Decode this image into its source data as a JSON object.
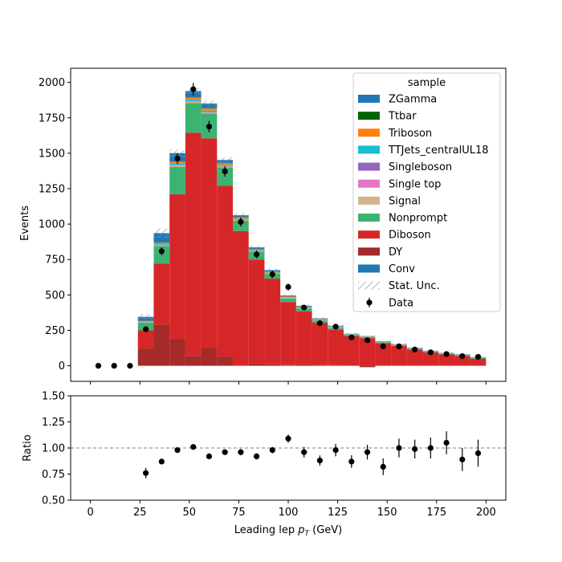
{
  "chart_data": [
    {
      "type": "bar",
      "panel": "main",
      "subtype": "stacked-histogram",
      "ylabel": "Events",
      "xlim": [
        -10,
        210
      ],
      "ylim": [
        -110,
        2100
      ],
      "x_ticks": [
        0,
        25,
        50,
        75,
        100,
        125,
        150,
        175,
        200
      ],
      "y_ticks": [
        0,
        250,
        500,
        750,
        1000,
        1250,
        1500,
        1750,
        2000
      ],
      "y_tick_labels": [
        "0",
        "250",
        "500",
        "750",
        "1000",
        "1250",
        "1500",
        "1750",
        "2000"
      ],
      "bin_edges": [
        0,
        8,
        16,
        24,
        32,
        40,
        48,
        56,
        64,
        72,
        80,
        88,
        96,
        104,
        112,
        120,
        128,
        136,
        144,
        152,
        160,
        168,
        176,
        184,
        192,
        200
      ],
      "legend": {
        "title": "sample",
        "placement": "top-right",
        "entries": [
          "ZGamma",
          "Ttbar",
          "Triboson",
          "TTJets_centralUL18",
          "Singleboson",
          "Single top",
          "Signal",
          "Nonprompt",
          "Diboson",
          "DY",
          "Conv",
          "Stat. Unc.",
          "Data"
        ]
      },
      "series": [
        {
          "name": "DY",
          "color": "#a52a2a",
          "values": [
            0,
            0,
            0,
            120,
            290,
            190,
            70,
            125,
            65,
            0,
            15,
            10,
            5,
            10,
            5,
            5,
            0,
            -10,
            0,
            0,
            0,
            0,
            0,
            0,
            0
          ]
        },
        {
          "name": "Diboson",
          "color": "#d62728",
          "values": [
            0,
            0,
            0,
            130,
            430,
            1020,
            1575,
            1480,
            1205,
            950,
            735,
            605,
            445,
            375,
            300,
            250,
            210,
            195,
            160,
            140,
            115,
            95,
            80,
            70,
            50
          ]
        },
        {
          "name": "Nonprompt",
          "color": "#3cb371",
          "values": [
            0,
            0,
            0,
            55,
            125,
            195,
            210,
            175,
            130,
            75,
            55,
            35,
            25,
            20,
            15,
            12,
            8,
            8,
            6,
            6,
            5,
            5,
            5,
            5,
            5
          ]
        },
        {
          "name": "Signal",
          "color": "#d2b48c",
          "values": [
            0,
            0,
            0,
            3,
            5,
            8,
            8,
            7,
            6,
            5,
            4,
            3,
            3,
            2,
            2,
            2,
            1,
            1,
            1,
            1,
            1,
            1,
            1,
            1,
            1
          ]
        },
        {
          "name": "Single top",
          "color": "#e377c2",
          "values": [
            0,
            0,
            0,
            1,
            2,
            2,
            2,
            2,
            2,
            1,
            1,
            1,
            1,
            1,
            1,
            1,
            0,
            0,
            0,
            0,
            0,
            0,
            0,
            0,
            0
          ]
        },
        {
          "name": "Singleboson",
          "color": "#9467bd",
          "values": [
            0,
            0,
            0,
            1,
            2,
            2,
            2,
            2,
            2,
            1,
            1,
            1,
            1,
            1,
            1,
            1,
            0,
            0,
            0,
            0,
            0,
            0,
            0,
            0,
            0
          ]
        },
        {
          "name": "TTJets_centralUL18",
          "color": "#17becf",
          "values": [
            0,
            0,
            0,
            2,
            5,
            8,
            10,
            10,
            8,
            6,
            5,
            4,
            3,
            3,
            2,
            2,
            2,
            1,
            1,
            1,
            1,
            1,
            1,
            1,
            1
          ]
        },
        {
          "name": "Triboson",
          "color": "#ff7f0e",
          "values": [
            0,
            0,
            0,
            5,
            10,
            14,
            15,
            15,
            12,
            10,
            8,
            6,
            5,
            4,
            3,
            3,
            2,
            2,
            2,
            2,
            1,
            1,
            1,
            1,
            1
          ]
        },
        {
          "name": "Ttbar",
          "color": "#006400",
          "values": [
            0,
            0,
            0,
            1,
            2,
            2,
            2,
            2,
            2,
            1,
            1,
            1,
            1,
            1,
            1,
            1,
            0,
            0,
            0,
            0,
            0,
            0,
            0,
            0,
            0
          ]
        },
        {
          "name": "ZGamma",
          "color": "#1f77b4",
          "values": [
            0,
            0,
            0,
            15,
            35,
            40,
            35,
            25,
            15,
            10,
            8,
            6,
            5,
            4,
            3,
            3,
            2,
            2,
            2,
            2,
            2,
            2,
            2,
            2,
            2
          ]
        },
        {
          "name": "Conv",
          "color": "#1f77b4",
          "values": [
            0,
            0,
            0,
            12,
            30,
            20,
            10,
            8,
            6,
            4,
            3,
            3,
            2,
            2,
            2,
            2,
            1,
            1,
            1,
            1,
            1,
            1,
            1,
            1,
            1
          ]
        }
      ],
      "stat_unc": [
        0,
        0,
        0,
        20,
        32,
        25,
        22,
        20,
        18,
        16,
        15,
        12,
        10,
        9,
        8,
        7,
        6,
        6,
        5,
        5,
        5,
        5,
        4,
        4,
        4
      ],
      "data": {
        "name": "Data",
        "color": "#000000",
        "x": [
          4,
          12,
          20,
          28,
          36,
          44,
          52,
          60,
          68,
          76,
          84,
          92,
          100,
          108,
          116,
          124,
          132,
          140,
          148,
          156,
          164,
          172,
          180,
          188,
          196
        ],
        "y": [
          0,
          0,
          0,
          258,
          808,
          1463,
          1952,
          1688,
          1372,
          1015,
          786,
          645,
          556,
          411,
          301,
          276,
          200,
          180,
          137,
          137,
          115,
          95,
          83,
          68,
          63
        ],
        "yerr": [
          0,
          0,
          0,
          16,
          28,
          38,
          44,
          41,
          37,
          32,
          28,
          25,
          24,
          20,
          17,
          17,
          14,
          13,
          12,
          12,
          11,
          10,
          9,
          8,
          8
        ]
      }
    },
    {
      "type": "scatter",
      "panel": "ratio",
      "xlabel_prefix": "Leading lep ",
      "xlabel_var": "p",
      "xlabel_sub": "T",
      "xlabel_suffix": " (GeV)",
      "ylabel": "Ratio",
      "xlim": [
        -10,
        210
      ],
      "ylim": [
        0.5,
        1.5
      ],
      "x_ticks": [
        0,
        25,
        50,
        75,
        100,
        125,
        150,
        175,
        200
      ],
      "x_tick_labels": [
        "0",
        "25",
        "50",
        "75",
        "100",
        "125",
        "150",
        "175",
        "200"
      ],
      "y_ticks": [
        0.5,
        0.75,
        1.0,
        1.25,
        1.5
      ],
      "y_tick_labels": [
        "0.50",
        "0.75",
        "1.00",
        "1.25",
        "1.50"
      ],
      "reference_line": 1.0,
      "x": [
        28,
        36,
        44,
        52,
        60,
        68,
        76,
        84,
        92,
        100,
        108,
        116,
        124,
        132,
        140,
        148,
        156,
        164,
        172,
        180,
        188,
        196
      ],
      "y": [
        0.76,
        0.87,
        0.98,
        1.01,
        0.92,
        0.96,
        0.96,
        0.92,
        0.98,
        1.09,
        0.96,
        0.88,
        0.98,
        0.87,
        0.96,
        0.82,
        1.0,
        0.99,
        1.0,
        1.05,
        0.89,
        0.95
      ],
      "yerr": [
        0.05,
        0.02,
        0.02,
        0.02,
        0.02,
        0.02,
        0.03,
        0.03,
        0.03,
        0.04,
        0.05,
        0.05,
        0.06,
        0.06,
        0.07,
        0.08,
        0.09,
        0.09,
        0.1,
        0.11,
        0.11,
        0.13
      ]
    }
  ]
}
